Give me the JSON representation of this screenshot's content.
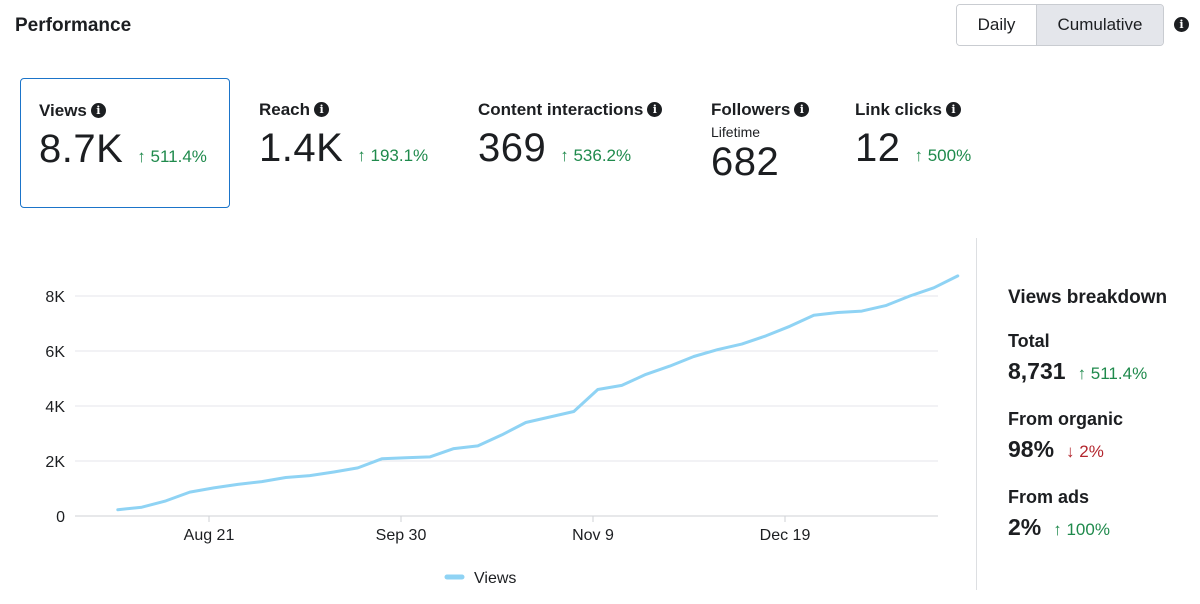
{
  "header": {
    "title": "Performance",
    "toggle": {
      "daily": "Daily",
      "cumulative": "Cumulative",
      "selected": "Cumulative"
    },
    "info_icon": "info-icon"
  },
  "metrics": [
    {
      "label": "Views",
      "value": "8.7K",
      "change": "↑ 511.4%",
      "selected": true
    },
    {
      "label": "Reach",
      "value": "1.4K",
      "change": "↑ 193.1%"
    },
    {
      "label": "Content interactions",
      "value": "369",
      "change": "↑ 536.2%"
    },
    {
      "label": "Followers",
      "sublabel": "Lifetime",
      "value": "682"
    },
    {
      "label": "Link clicks",
      "value": "12",
      "change": "↑ 500%"
    }
  ],
  "chart_data": {
    "type": "line",
    "xlabel": "",
    "ylabel": "",
    "x_ticks": [
      "Aug 21",
      "Sep 30",
      "Nov 9",
      "Dec 19"
    ],
    "y_ticks": [
      "0",
      "2K",
      "4K",
      "6K",
      "8K"
    ],
    "ylim": [
      0,
      8800
    ],
    "legend": "bottom",
    "series": [
      {
        "name": "Views",
        "color": "#8fd3f4",
        "x": [
          "Aug 2",
          "Aug 7",
          "Aug 12",
          "Aug 17",
          "Aug 22",
          "Aug 27",
          "Sep 1",
          "Sep 6",
          "Sep 11",
          "Sep 16",
          "Sep 21",
          "Sep 26",
          "Oct 1",
          "Oct 6",
          "Oct 11",
          "Oct 16",
          "Oct 21",
          "Oct 26",
          "Oct 31",
          "Nov 5",
          "Nov 10",
          "Nov 15",
          "Nov 20",
          "Nov 25",
          "Nov 30",
          "Dec 5",
          "Dec 10",
          "Dec 15",
          "Dec 20",
          "Dec 25",
          "Dec 30",
          "Jan 4",
          "Jan 9",
          "Jan 14",
          "Jan 19",
          "Jan 24"
        ],
        "values": [
          230,
          320,
          550,
          870,
          1020,
          1150,
          1250,
          1400,
          1470,
          1600,
          1750,
          2080,
          2120,
          2150,
          2450,
          2550,
          2950,
          3400,
          3600,
          3800,
          4600,
          4750,
          5150,
          5450,
          5800,
          6050,
          6250,
          6550,
          6900,
          7300,
          7400,
          7450,
          7650,
          8000,
          8300,
          8731
        ]
      }
    ]
  },
  "breakdown": {
    "title": "Views breakdown",
    "items": [
      {
        "label": "Total",
        "value": "8,731",
        "change": "↑ 511.4%",
        "direction": "up"
      },
      {
        "label": "From organic",
        "value": "98%",
        "change": "↓ 2%",
        "direction": "down"
      },
      {
        "label": "From ads",
        "value": "2%",
        "change": "↑ 100%",
        "direction": "up"
      }
    ]
  }
}
